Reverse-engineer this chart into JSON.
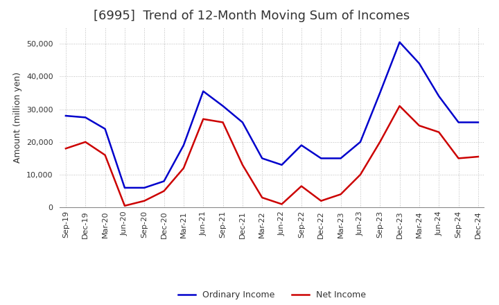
{
  "title": "[6995]  Trend of 12-Month Moving Sum of Incomes",
  "ylabel": "Amount (million yen)",
  "labels": [
    "Sep-19",
    "Dec-19",
    "Mar-20",
    "Jun-20",
    "Sep-20",
    "Dec-20",
    "Mar-21",
    "Jun-21",
    "Sep-21",
    "Dec-21",
    "Mar-22",
    "Jun-22",
    "Sep-22",
    "Dec-22",
    "Mar-23",
    "Jun-23",
    "Sep-23",
    "Dec-23",
    "Mar-24",
    "Jun-24",
    "Sep-24",
    "Dec-24"
  ],
  "ordinary_income": [
    28000,
    27500,
    24000,
    6000,
    6000,
    8000,
    19000,
    35500,
    31000,
    26000,
    15000,
    13000,
    19000,
    15000,
    15000,
    20000,
    35000,
    50500,
    44000,
    34000,
    26000,
    26000
  ],
  "net_income": [
    18000,
    20000,
    16000,
    500,
    2000,
    5000,
    12000,
    27000,
    26000,
    13000,
    3000,
    1000,
    6500,
    2000,
    4000,
    10000,
    20000,
    31000,
    25000,
    23000,
    15000,
    15500
  ],
  "ordinary_color": "#0000cc",
  "net_color": "#cc0000",
  "ylim": [
    0,
    55000
  ],
  "yticks": [
    0,
    10000,
    20000,
    30000,
    40000,
    50000
  ],
  "background_color": "#ffffff",
  "grid_color": "#bbbbbb",
  "title_fontsize": 13,
  "axis_fontsize": 9,
  "tick_fontsize": 8,
  "legend_fontsize": 9,
  "text_color": "#333333",
  "line_width": 1.8
}
